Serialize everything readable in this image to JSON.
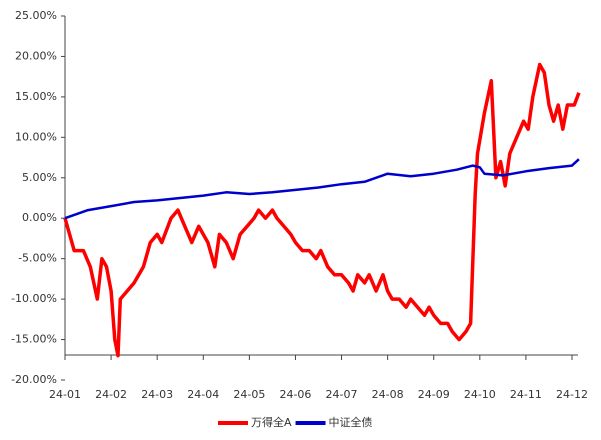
{
  "chart_data": {
    "type": "line",
    "xlim": [
      0,
      11
    ],
    "xticks": [
      {
        "value": 0,
        "label": "24-01"
      },
      {
        "value": 1,
        "label": "24-02"
      },
      {
        "value": 2,
        "label": "24-03"
      },
      {
        "value": 3,
        "label": "24-04"
      },
      {
        "value": 4,
        "label": "24-05"
      },
      {
        "value": 5,
        "label": "24-06"
      },
      {
        "value": 6,
        "label": "24-07"
      },
      {
        "value": 7,
        "label": "24-08"
      },
      {
        "value": 8,
        "label": "24-09"
      },
      {
        "value": 9,
        "label": "24-10"
      },
      {
        "value": 10,
        "label": "24-11"
      },
      {
        "value": 11,
        "label": "24-12"
      }
    ],
    "ylim": [
      -20,
      25
    ],
    "yticks": [
      {
        "value": -20,
        "label": "-20.00%"
      },
      {
        "value": -15,
        "label": "-15.00%"
      },
      {
        "value": -10,
        "label": "-10.00%"
      },
      {
        "value": -5,
        "label": "-5.00%"
      },
      {
        "value": 0,
        "label": "0.00%"
      },
      {
        "value": 5,
        "label": "5.00%"
      },
      {
        "value": 10,
        "label": "10.00%"
      },
      {
        "value": 15,
        "label": "15.00%"
      },
      {
        "value": 20,
        "label": "20.00%"
      },
      {
        "value": 25,
        "label": "25.00%"
      }
    ],
    "legend": "bottom",
    "series": [
      {
        "name": "万得全A",
        "color": "#ff0000",
        "x": [
          0,
          0.1,
          0.2,
          0.4,
          0.55,
          0.7,
          0.8,
          0.9,
          1.0,
          1.08,
          1.15,
          1.2,
          1.35,
          1.5,
          1.7,
          1.85,
          2.0,
          2.1,
          2.3,
          2.45,
          2.6,
          2.75,
          2.9,
          3.0,
          3.1,
          3.25,
          3.35,
          3.5,
          3.65,
          3.8,
          3.95,
          4.1,
          4.2,
          4.35,
          4.5,
          4.6,
          4.75,
          4.9,
          5.0,
          5.15,
          5.3,
          5.45,
          5.55,
          5.7,
          5.85,
          6.0,
          6.15,
          6.25,
          6.35,
          6.5,
          6.6,
          6.75,
          6.9,
          7.0,
          7.1,
          7.25,
          7.4,
          7.5,
          7.65,
          7.8,
          7.9,
          8.0,
          8.15,
          8.3,
          8.4,
          8.55,
          8.7,
          8.8,
          8.85,
          8.9,
          8.95,
          9.1,
          9.25,
          9.35,
          9.45,
          9.55,
          9.65,
          9.8,
          9.95,
          10.05,
          10.15,
          10.3,
          10.4,
          10.5,
          10.6,
          10.7,
          10.8,
          10.9,
          11.05,
          11.15
        ],
        "values": [
          0,
          -2,
          -4,
          -4,
          -6,
          -10,
          -5,
          -6,
          -9,
          -15,
          -17,
          -10,
          -9,
          -8,
          -6,
          -3,
          -2,
          -3,
          0,
          1,
          -1,
          -3,
          -1,
          -2,
          -3,
          -6,
          -2,
          -3,
          -5,
          -2,
          -1,
          0,
          1,
          0,
          1,
          0,
          -1,
          -2,
          -3,
          -4,
          -4,
          -5,
          -4,
          -6,
          -7,
          -7,
          -8,
          -9,
          -7,
          -8,
          -7,
          -9,
          -7,
          -9,
          -10,
          -10,
          -11,
          -10,
          -11,
          -12,
          -11,
          -12,
          -13,
          -13,
          -14,
          -15,
          -14,
          -13,
          -5,
          3,
          8,
          13,
          17,
          5,
          7,
          4,
          8,
          10,
          12,
          11,
          15,
          19,
          18,
          14,
          12,
          14,
          11,
          14,
          14,
          15.5
        ]
      },
      {
        "name": "中证全债",
        "color": "#0000cc",
        "x": [
          0,
          0.5,
          1.0,
          1.5,
          2.0,
          2.5,
          3.0,
          3.5,
          4.0,
          4.5,
          5.0,
          5.5,
          6.0,
          6.5,
          7.0,
          7.5,
          8.0,
          8.5,
          8.85,
          9.0,
          9.1,
          9.5,
          10.0,
          10.5,
          11.0,
          11.15
        ],
        "values": [
          0,
          1,
          1.5,
          2,
          2.2,
          2.5,
          2.8,
          3.2,
          3.0,
          3.2,
          3.5,
          3.8,
          4.2,
          4.5,
          5.5,
          5.2,
          5.5,
          6.0,
          6.5,
          6.3,
          5.5,
          5.3,
          5.8,
          6.2,
          6.5,
          7.3
        ]
      }
    ]
  }
}
